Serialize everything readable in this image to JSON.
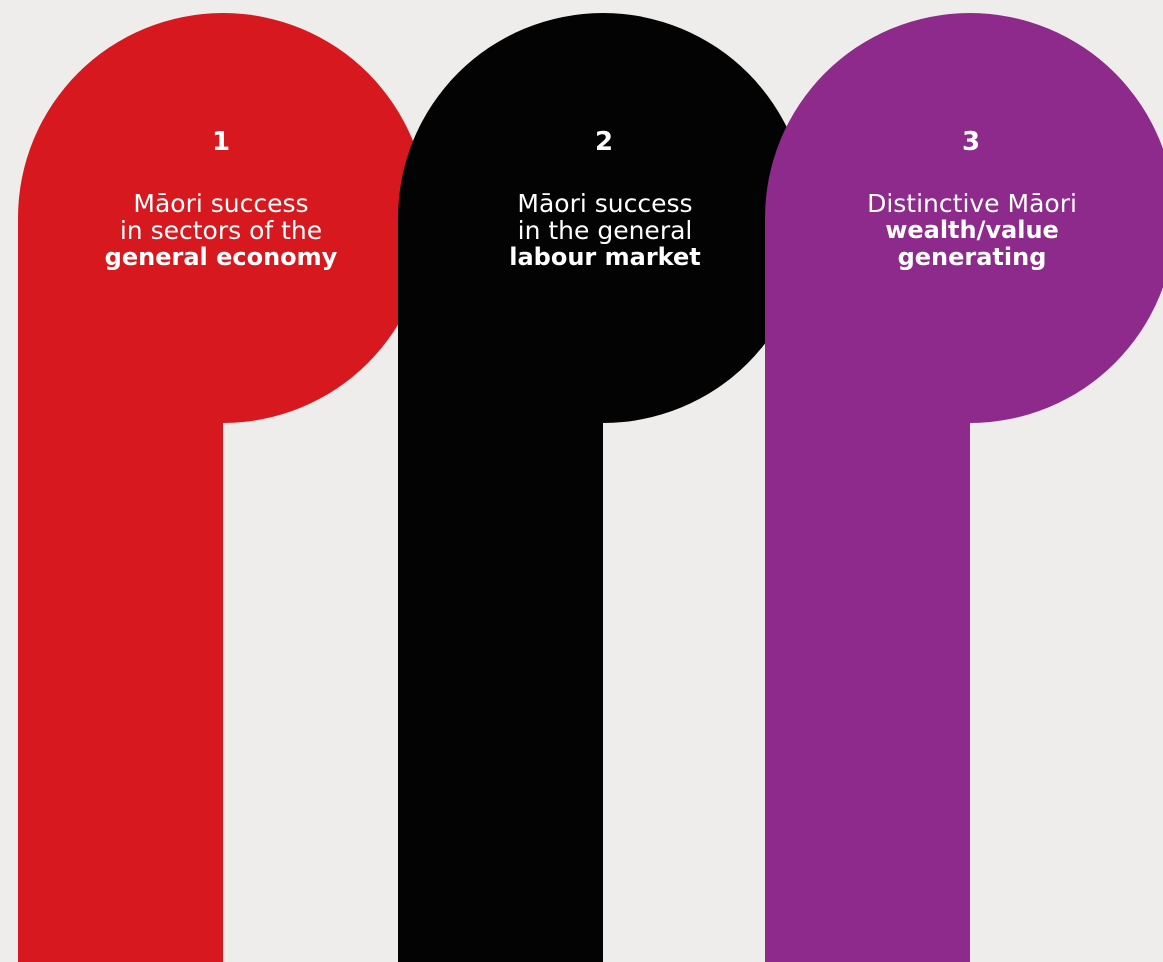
{
  "colors": {
    "background": "#EEEDEB",
    "pillar_1": "#D7191F",
    "pillar_2": "#030303",
    "pillar_3": "#8E2A8B",
    "text": "#FFFFFF"
  },
  "pillars": [
    {
      "number": "1",
      "line1": "Māori success",
      "line2": "in sectors of the",
      "line3_bold": "general economy"
    },
    {
      "number": "2",
      "line1": "Māori success",
      "line2": "in the general",
      "line3_bold": "labour market"
    },
    {
      "number": "3",
      "line1": "Distinctive Māori",
      "line2_bold": "wealth/value",
      "line3_bold": "generating"
    }
  ]
}
